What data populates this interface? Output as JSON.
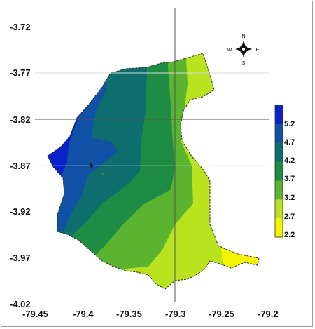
{
  "map": {
    "lat_labels": [
      "-3.72",
      "-3.77",
      "-3.82",
      "-3.87",
      "-3.92",
      "-3.97",
      "-4.02"
    ],
    "lon_labels": [
      "-79.45",
      "-79.4",
      "-79.35",
      "-79.3",
      "-79.25",
      "-79.2"
    ],
    "compass": {
      "n": "N",
      "s": "S",
      "e": "E",
      "w": "W"
    },
    "legend": {
      "values": [
        "5.2",
        "4.7",
        "4.2",
        "3.7",
        "3.2",
        "2.7",
        "2.2"
      ],
      "colors": [
        "#0a22c8",
        "#1050a5",
        "#0e6e6e",
        "#1f8c46",
        "#5ab430",
        "#b9e21f",
        "#f5f500"
      ]
    }
  }
}
